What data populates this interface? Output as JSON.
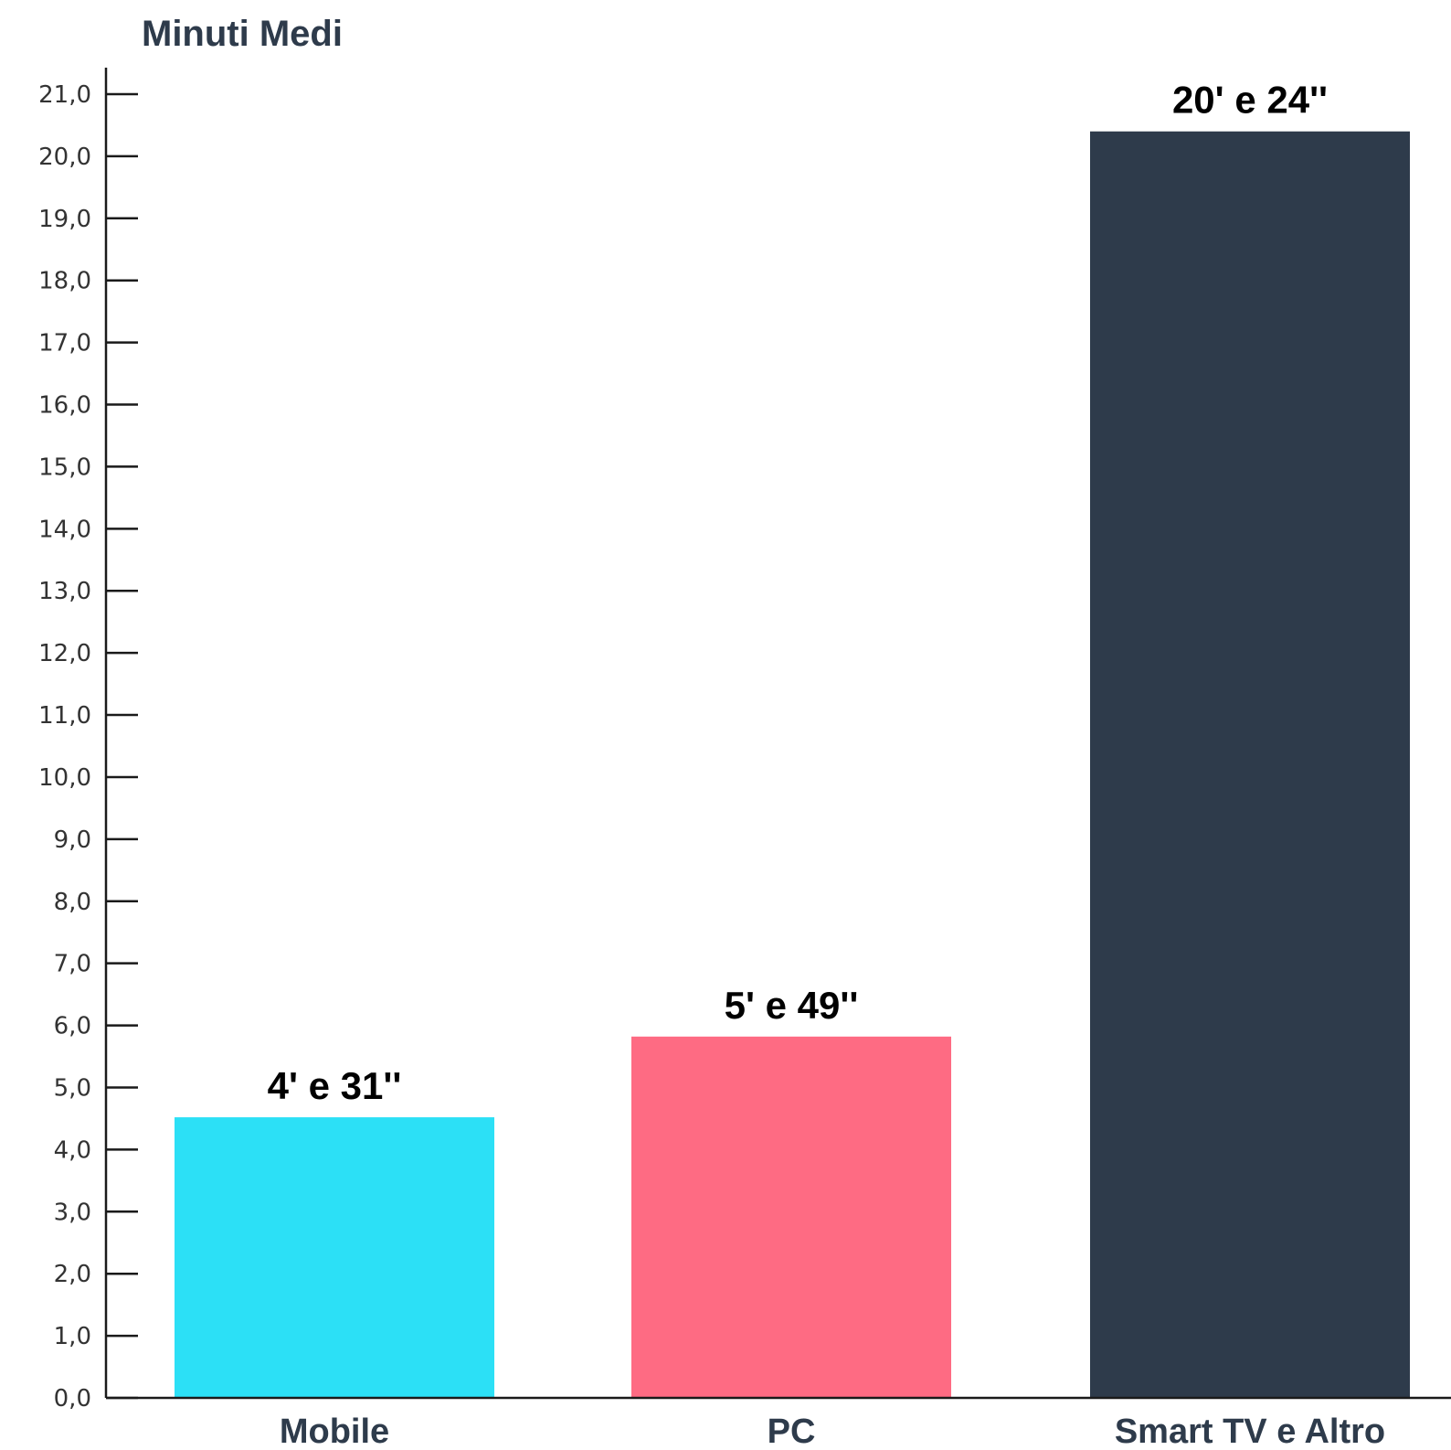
{
  "chart_data": {
    "type": "bar",
    "ylabel": "Minuti Medi",
    "xlabel": "",
    "categories": [
      "Mobile",
      "PC",
      "Smart TV e Altro"
    ],
    "values": [
      4.52,
      5.82,
      20.4
    ],
    "data_labels": [
      "4' e 31''",
      "5' e 49''",
      "20' e 24''"
    ],
    "ylim": [
      0,
      21
    ],
    "y_ticks": [
      "0,0",
      "1,0",
      "2,0",
      "3,0",
      "4,0",
      "5,0",
      "6,0",
      "7,0",
      "8,0",
      "9,0",
      "10,0",
      "11,0",
      "12,0",
      "13,0",
      "14,0",
      "15,0",
      "16,0",
      "17,0",
      "18,0",
      "19,0",
      "20,0",
      "21,0"
    ],
    "grid": false,
    "legend": "none",
    "bar_colors": [
      "#2ce0f6",
      "#fe6b83",
      "#2e3b4b"
    ],
    "colors": {
      "axis": "#1a1a1a",
      "ylabel": "#2e3b4b",
      "tick_label": "#333333",
      "category_label": "#2e3b4b",
      "data_label": "#000000"
    }
  }
}
